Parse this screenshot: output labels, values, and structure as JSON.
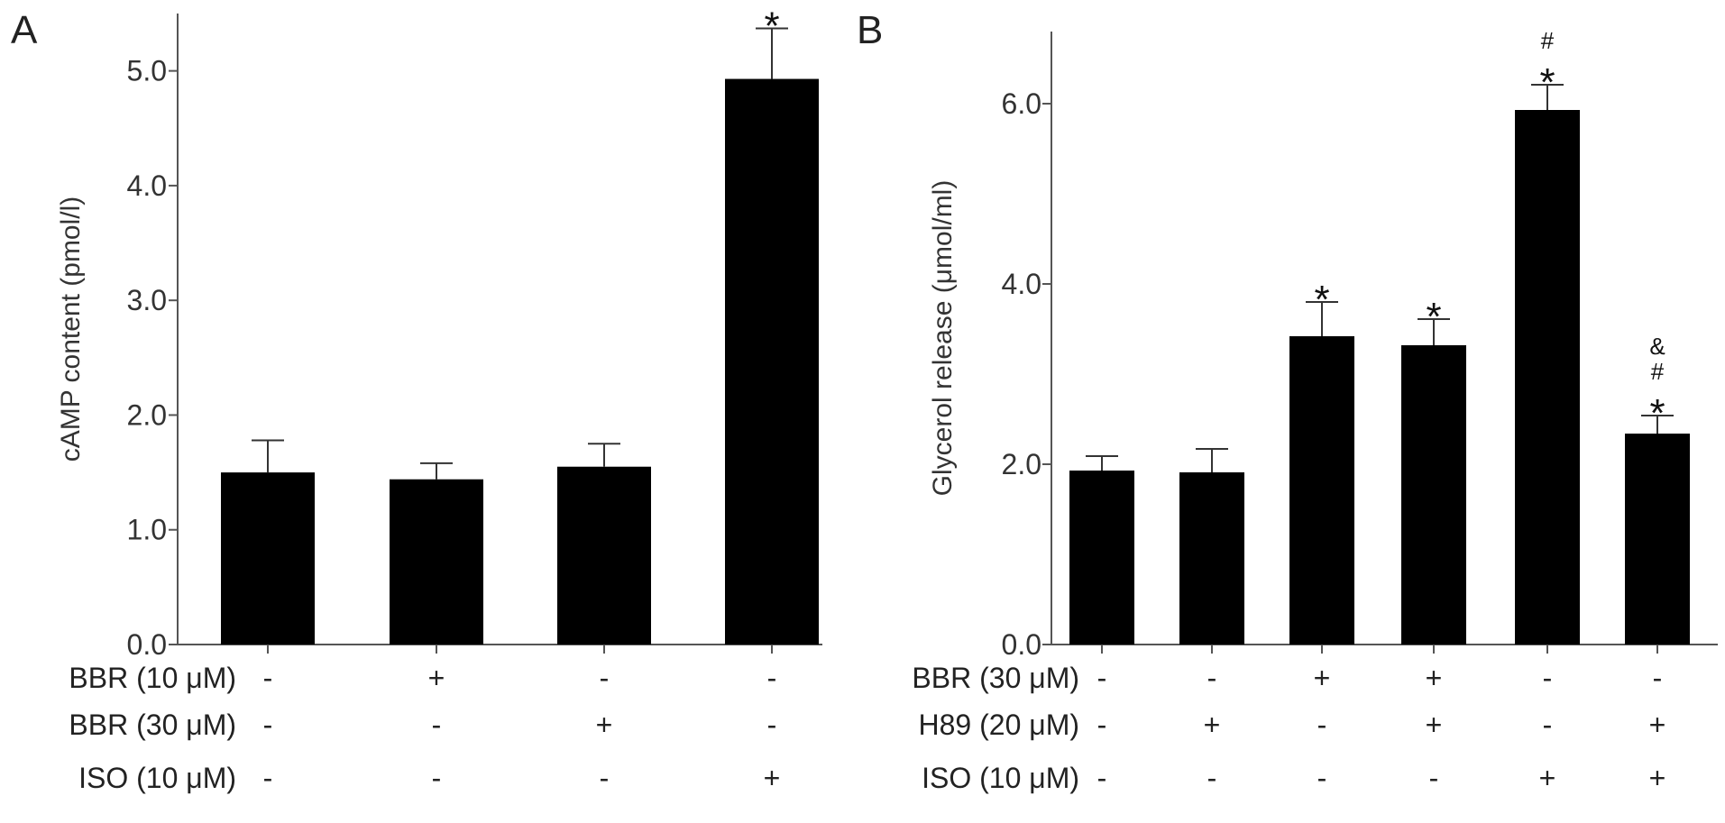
{
  "chart_data": [
    {
      "panel": "A",
      "type": "bar",
      "ylabel": "cAMP content (pmol/l)",
      "ylim": [
        0,
        5.5
      ],
      "yticks": [
        "0.0",
        "1.0",
        "2.0",
        "3.0",
        "4.0",
        "5.0"
      ],
      "values": [
        1.5,
        1.44,
        1.55,
        4.93
      ],
      "errors": [
        0.28,
        0.14,
        0.2,
        0.44
      ],
      "annotations": [
        [],
        [],
        [],
        [
          "*"
        ]
      ],
      "conditions": [
        {
          "label": "BBR (10 μM)",
          "signs": [
            "-",
            "+",
            "-",
            "-"
          ]
        },
        {
          "label": "BBR (30 μM)",
          "signs": [
            "-",
            "-",
            "+",
            "-"
          ]
        },
        {
          "label": "ISO (10 μM)",
          "signs": [
            "-",
            "-",
            "-",
            "+"
          ]
        }
      ],
      "bar_color": "#000000"
    },
    {
      "panel": "B",
      "type": "bar",
      "ylabel": "Glycerol release (μmol/ml)",
      "ylim": [
        0,
        6.8
      ],
      "yticks": [
        "0.0",
        "2.0",
        "4.0",
        "6.0"
      ],
      "values": [
        1.93,
        1.91,
        3.42,
        3.32,
        5.93,
        2.34
      ],
      "errors": [
        0.16,
        0.26,
        0.38,
        0.29,
        0.28,
        0.2
      ],
      "annotations": [
        [],
        [],
        [
          "*"
        ],
        [
          "*"
        ],
        [
          "*",
          "#"
        ],
        [
          "*",
          "#",
          "&"
        ]
      ],
      "conditions": [
        {
          "label": "BBR (30 μM)",
          "signs": [
            "-",
            "-",
            "+",
            "+",
            "-",
            "-"
          ]
        },
        {
          "label": "H89 (20 μM)",
          "signs": [
            "-",
            "+",
            "-",
            "+",
            "-",
            "+"
          ]
        },
        {
          "label": "ISO (10 μM)",
          "signs": [
            "-",
            "-",
            "-",
            "-",
            "+",
            "+"
          ]
        }
      ],
      "bar_color": "#000000"
    }
  ]
}
